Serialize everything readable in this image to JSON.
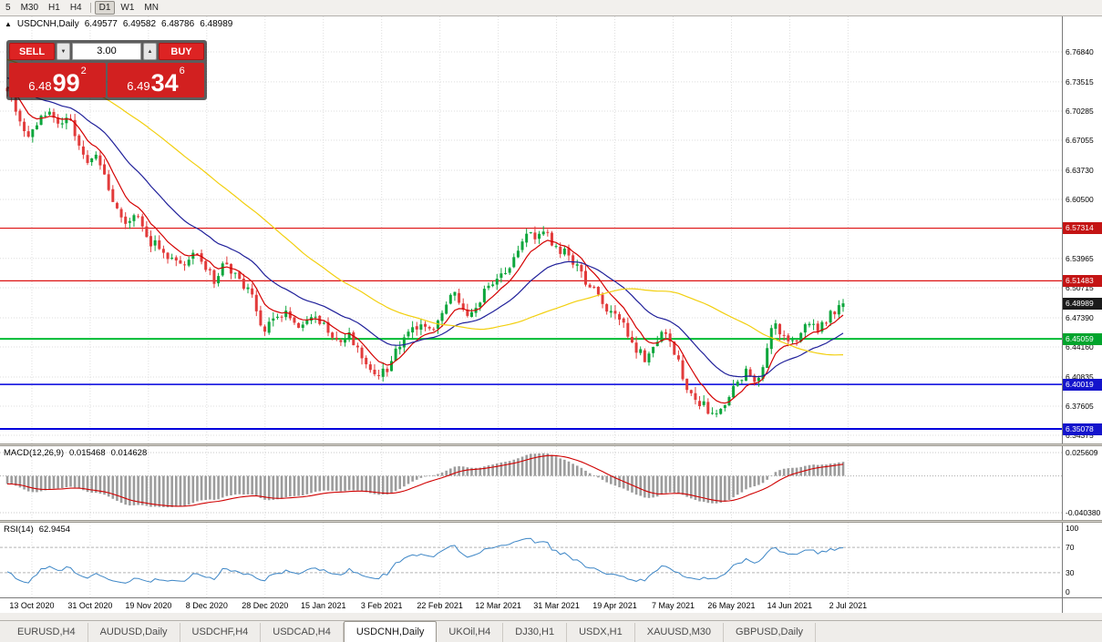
{
  "toolbar": {
    "timeframes": [
      {
        "label": "5",
        "active": false
      },
      {
        "label": "M30",
        "active": false
      },
      {
        "label": "H1",
        "active": false
      },
      {
        "label": "H4",
        "active": false
      },
      {
        "separator": true
      },
      {
        "label": "D1",
        "active": true
      },
      {
        "label": "W1",
        "active": false
      },
      {
        "label": "MN",
        "active": false
      }
    ]
  },
  "chart_header": {
    "collapse_icon": "▲",
    "symbol": "USDCNH,Daily",
    "open": "6.49577",
    "high": "6.49582",
    "low": "6.48786",
    "close": "6.48989"
  },
  "trade_panel": {
    "sell_label": "SELL",
    "buy_label": "BUY",
    "volume": "3.00",
    "volume_down_icon": "▼",
    "volume_up_icon": "▲",
    "sell_price": {
      "main": "6.48",
      "pips": "99",
      "pt": "2"
    },
    "buy_price": {
      "main": "6.49",
      "pips": "34",
      "pt": "6"
    }
  },
  "chart_data": {
    "type": "candlestick",
    "symbol": "USDCNH",
    "timeframe": "Daily",
    "grid_color": "#dedede",
    "warmup": 60,
    "warmup_slope": 0.0013,
    "price_panel": {
      "price_min": 6.3347,
      "price_max": 6.8077,
      "ticks": [
        6.7684,
        6.73515,
        6.70285,
        6.67055,
        6.6373,
        6.605,
        6.53965,
        6.50715,
        6.4739,
        6.4416,
        6.40835,
        6.37605,
        6.34375
      ],
      "badges": [
        {
          "price": 6.57314,
          "label": "6.57314",
          "color": "#c41414"
        },
        {
          "price": 6.51483,
          "label": "6.51483",
          "color": "#c41414"
        },
        {
          "price": 6.48989,
          "label": "6.48989",
          "color": "#1a1a1a"
        },
        {
          "price": 6.45059,
          "label": "6.45059",
          "color": "#00a42c"
        },
        {
          "price": 6.40019,
          "label": "6.40019",
          "color": "#1414cc"
        },
        {
          "price": 6.35078,
          "label": "6.35078",
          "color": "#1414cc"
        }
      ],
      "hlines": [
        {
          "price": 6.57314,
          "color": "#dd1111",
          "width": 1.2
        },
        {
          "price": 6.51483,
          "color": "#dd1111",
          "width": 1.2
        },
        {
          "price": 6.45059,
          "color": "#00bb33",
          "width": 2
        },
        {
          "price": 6.40019,
          "color": "#0000dd",
          "width": 1.5
        },
        {
          "price": 6.35078,
          "color": "#0000dd",
          "width": 2
        }
      ],
      "candles": {
        "count": 199,
        "x_start": 0.0069,
        "x_end": 0.794,
        "seed": 9,
        "noise": 0.011,
        "gap": 0.0025,
        "wick": 0.007,
        "last_close": 6.4899,
        "up_color": "#0da63c",
        "down_color": "#e23b3b",
        "anchors": [
          [
            0,
            6.728
          ],
          [
            0.013,
            6.7
          ],
          [
            0.024,
            6.668
          ],
          [
            0.035,
            6.69
          ],
          [
            0.051,
            6.702
          ],
          [
            0.062,
            6.686
          ],
          [
            0.073,
            6.696
          ],
          [
            0.084,
            6.664
          ],
          [
            0.095,
            6.641
          ],
          [
            0.106,
            6.654
          ],
          [
            0.117,
            6.63
          ],
          [
            0.128,
            6.6
          ],
          [
            0.142,
            6.581
          ],
          [
            0.155,
            6.585
          ],
          [
            0.166,
            6.561
          ],
          [
            0.177,
            6.556
          ],
          [
            0.188,
            6.546
          ],
          [
            0.198,
            6.541
          ],
          [
            0.214,
            6.536
          ],
          [
            0.226,
            6.546
          ],
          [
            0.237,
            6.526
          ],
          [
            0.248,
            6.516
          ],
          [
            0.258,
            6.53
          ],
          [
            0.269,
            6.526
          ],
          [
            0.284,
            6.506
          ],
          [
            0.294,
            6.496
          ],
          [
            0.305,
            6.456
          ],
          [
            0.316,
            6.47
          ],
          [
            0.327,
            6.48
          ],
          [
            0.338,
            6.476
          ],
          [
            0.351,
            6.461
          ],
          [
            0.364,
            6.476
          ],
          [
            0.375,
            6.466
          ],
          [
            0.386,
            6.461
          ],
          [
            0.397,
            6.446
          ],
          [
            0.408,
            6.456
          ],
          [
            0.422,
            6.431
          ],
          [
            0.433,
            6.421
          ],
          [
            0.444,
            6.411
          ],
          [
            0.455,
            6.416
          ],
          [
            0.466,
            6.441
          ],
          [
            0.477,
            6.456
          ],
          [
            0.491,
            6.461
          ],
          [
            0.502,
            6.466
          ],
          [
            0.512,
            6.461
          ],
          [
            0.526,
            6.491
          ],
          [
            0.537,
            6.501
          ],
          [
            0.547,
            6.476
          ],
          [
            0.558,
            6.481
          ],
          [
            0.571,
            6.501
          ],
          [
            0.586,
            6.516
          ],
          [
            0.6,
            6.531
          ],
          [
            0.613,
            6.556
          ],
          [
            0.624,
            6.571
          ],
          [
            0.635,
            6.561
          ],
          [
            0.646,
            6.566
          ],
          [
            0.656,
            6.551
          ],
          [
            0.67,
            6.546
          ],
          [
            0.684,
            6.526
          ],
          [
            0.698,
            6.506
          ],
          [
            0.709,
            6.496
          ],
          [
            0.72,
            6.481
          ],
          [
            0.731,
            6.471
          ],
          [
            0.744,
            6.456
          ],
          [
            0.755,
            6.436
          ],
          [
            0.766,
            6.426
          ],
          [
            0.776,
            6.446
          ],
          [
            0.787,
            6.461
          ],
          [
            0.798,
            6.436
          ],
          [
            0.809,
            6.406
          ],
          [
            0.82,
            6.386
          ],
          [
            0.834,
            6.376
          ],
          [
            0.845,
            6.361
          ],
          [
            0.853,
            6.369
          ],
          [
            0.864,
            6.386
          ],
          [
            0.875,
            6.406
          ],
          [
            0.885,
            6.416
          ],
          [
            0.896,
            6.406
          ],
          [
            0.907,
            6.426
          ],
          [
            0.916,
            6.466
          ],
          [
            0.927,
            6.456
          ],
          [
            0.938,
            6.449
          ],
          [
            0.949,
            6.456
          ],
          [
            0.96,
            6.469
          ],
          [
            0.971,
            6.461
          ],
          [
            0.982,
            6.476
          ],
          [
            0.993,
            6.486
          ],
          [
            1,
            6.49
          ]
        ]
      },
      "mas": [
        {
          "period": 8,
          "type": "ema",
          "color": "#d40000"
        },
        {
          "period": 24,
          "type": "ema",
          "color": "#20209a"
        },
        {
          "period": 55,
          "type": "sma",
          "color": "#f2cf0e"
        }
      ]
    },
    "macd_panel": {
      "label": "MACD(12,26,9)",
      "value_main": "0.015468",
      "value_signal": "0.014628",
      "fast": 12,
      "slow": 26,
      "signal": 9,
      "min": -0.0484,
      "max": 0.0326,
      "axis_labels": [
        {
          "value": 0.025609,
          "label": "0.025609"
        },
        {
          "value": -0.04038,
          "label": "-0.040380"
        }
      ],
      "histogram_color": "#9c9c9c",
      "signal_color": "#d00000"
    },
    "rsi_panel": {
      "label": "RSI(14)",
      "value": "62.9454",
      "period": 14,
      "min": -9,
      "max": 109,
      "levels": [
        70,
        30
      ],
      "axis_labels": [
        {
          "value": 100,
          "label": "100"
        },
        {
          "value": 70,
          "label": "70"
        },
        {
          "value": 30,
          "label": "30"
        },
        {
          "value": 0,
          "label": "0"
        }
      ],
      "line_color": "#3d86c6"
    },
    "time_axis": {
      "x_start": 0.03,
      "x_step": 0.0549,
      "labels": [
        "13 Oct 2020",
        "31 Oct 2020",
        "19 Nov 2020",
        "8 Dec 2020",
        "28 Dec 2020",
        "15 Jan 2021",
        "3 Feb 2021",
        "22 Feb 2021",
        "12 Mar 2021",
        "31 Mar 2021",
        "19 Apr 2021",
        "7 May 2021",
        "26 May 2021",
        "14 Jun 2021",
        "2 Jul 2021"
      ]
    }
  },
  "tabs": [
    {
      "label": "EURUSD,H4",
      "active": false
    },
    {
      "label": "AUDUSD,Daily",
      "active": false
    },
    {
      "label": "USDCHF,H4",
      "active": false
    },
    {
      "label": "USDCAD,H4",
      "active": false
    },
    {
      "label": "USDCNH,Daily",
      "active": true
    },
    {
      "label": "UKOil,H4",
      "active": false
    },
    {
      "label": "DJ30,H1",
      "active": false
    },
    {
      "label": "USDX,H1",
      "active": false
    },
    {
      "label": "XAUUSD,M30",
      "active": false
    },
    {
      "label": "GBPUSD,Daily",
      "active": false
    }
  ]
}
